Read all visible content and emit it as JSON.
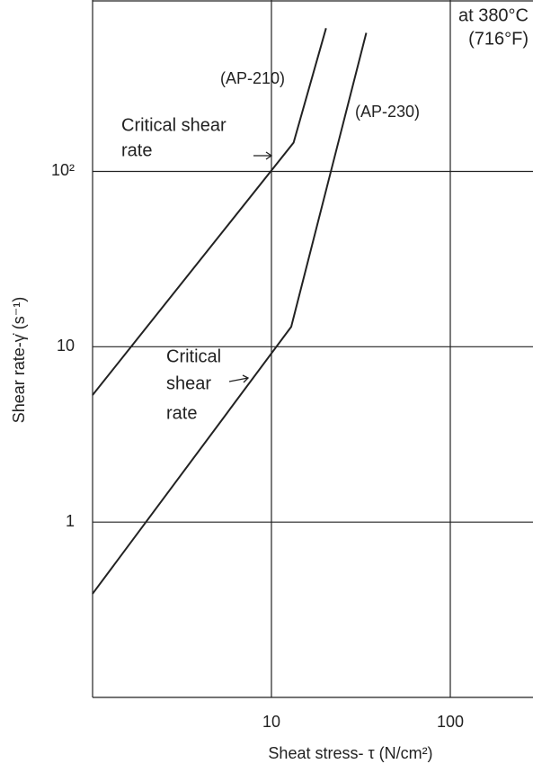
{
  "chart_data": {
    "type": "line",
    "xlabel": "Sheat stress- τ (N/cm²)",
    "ylabel": "Shear rate-γ̇ (s⁻¹)",
    "log_x": true,
    "log_y": true,
    "grid": true,
    "xlim": [
      1,
      290
    ],
    "ylim": [
      0.1,
      950
    ],
    "xticks": [
      10,
      100
    ],
    "yticks": [
      1,
      10,
      {
        "value": 100,
        "label": "10²"
      }
    ],
    "series": [
      {
        "name": "(AP-210)",
        "color": "#222222",
        "x": [
          1,
          13.3,
          20.2
        ],
        "values": [
          5.3,
          146,
          656
        ]
      },
      {
        "name": "(AP-230)",
        "color": "#222222",
        "x": [
          1,
          12.9,
          33.9
        ],
        "values": [
          0.39,
          13,
          617
        ]
      }
    ],
    "annotations": [
      [
        "at 380°C",
        "(716°F)"
      ],
      [
        "Critical shear",
        "rate"
      ],
      [
        "Critical",
        "shear",
        "rate"
      ]
    ]
  }
}
